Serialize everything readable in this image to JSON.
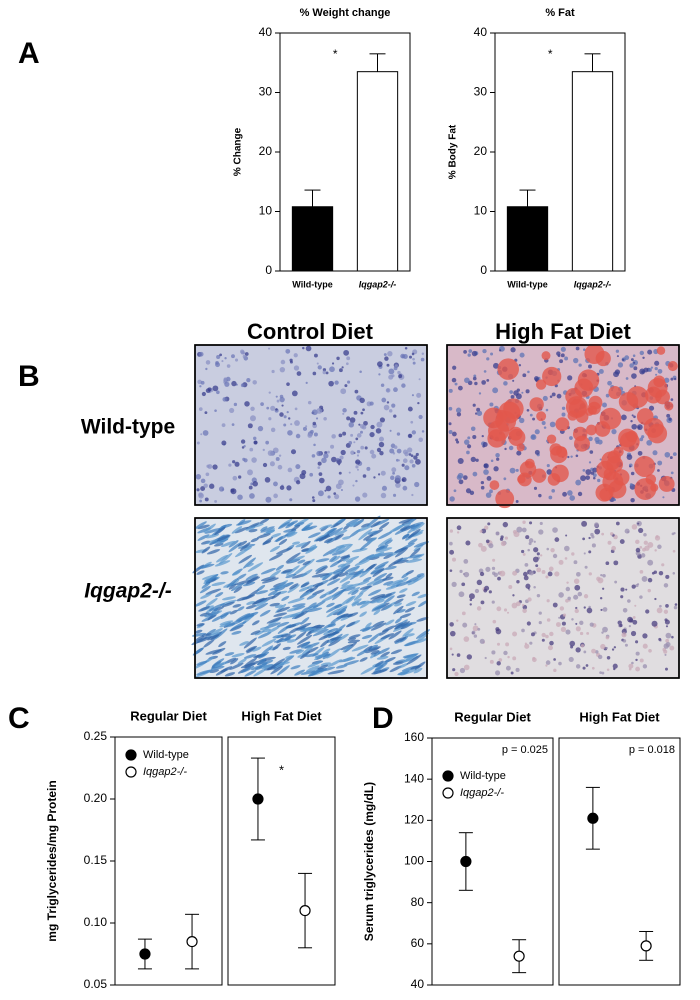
{
  "panel_labels": [
    "A",
    "B",
    "C",
    "D"
  ],
  "histology": {
    "columns": [
      "Control Diet",
      "High Fat Diet"
    ],
    "rows": [
      "Wild-type",
      "Iqgap2-/-"
    ]
  },
  "chart_data": [
    {
      "type": "bar",
      "title": "% Weight change",
      "y_label": "% Change",
      "categories": [
        "Wild-type",
        "Iqgap2-/-"
      ],
      "values": [
        10.8,
        33.5
      ],
      "errors": [
        2.8,
        3.0
      ],
      "colors": [
        "#000000",
        "#ffffff"
      ],
      "annotation": "*",
      "ylim": [
        0,
        40
      ],
      "yticks": [
        0,
        10,
        20,
        30,
        40
      ]
    },
    {
      "type": "bar",
      "title": "% Fat",
      "y_label": "% Body Fat",
      "categories": [
        "Wild-type",
        "Iqgap2-/-"
      ],
      "values": [
        10.8,
        33.5
      ],
      "errors": [
        2.8,
        3.0
      ],
      "colors": [
        "#000000",
        "#ffffff"
      ],
      "annotation": "*",
      "ylim": [
        0,
        40
      ],
      "yticks": [
        0,
        10,
        20,
        30,
        40
      ]
    },
    {
      "type": "dot",
      "y_label": "mg Triglycerides/mg Protein",
      "facets": [
        "Regular Diet",
        "High Fat Diet"
      ],
      "series": [
        {
          "name": "Wild-type",
          "color": "#000000",
          "values": [
            0.075,
            0.2
          ],
          "errors": [
            0.012,
            0.033
          ]
        },
        {
          "name": "Iqgap2-/-",
          "color": "#ffffff",
          "values": [
            0.085,
            0.11
          ],
          "errors": [
            0.022,
            0.03
          ]
        }
      ],
      "annotation": "*",
      "legend": "upper left",
      "ylim": [
        0.05,
        0.25
      ],
      "yticks": [
        {
          "value": 0.05,
          "label": "0.05"
        },
        {
          "value": 0.1,
          "label": "0.10"
        },
        {
          "value": 0.15,
          "label": "0.15"
        },
        {
          "value": 0.2,
          "label": "0.20"
        },
        {
          "value": 0.25,
          "label": "0.25"
        }
      ]
    },
    {
      "type": "dot",
      "y_label": "Serum triglycerides (mg/dL)",
      "facets": [
        "Regular Diet",
        "High Fat Diet"
      ],
      "series": [
        {
          "name": "Wild-type",
          "color": "#000000",
          "values": [
            100,
            121
          ],
          "errors": [
            14,
            15
          ]
        },
        {
          "name": "Iqgap2-/-",
          "color": "#ffffff",
          "values": [
            54,
            59
          ],
          "errors": [
            8,
            7
          ]
        }
      ],
      "facet_notes": [
        "p = 0.025",
        "p = 0.018"
      ],
      "legend": "upper left",
      "ylim": [
        40,
        160
      ],
      "yticks": [
        40,
        60,
        80,
        100,
        120,
        140,
        160
      ]
    }
  ]
}
